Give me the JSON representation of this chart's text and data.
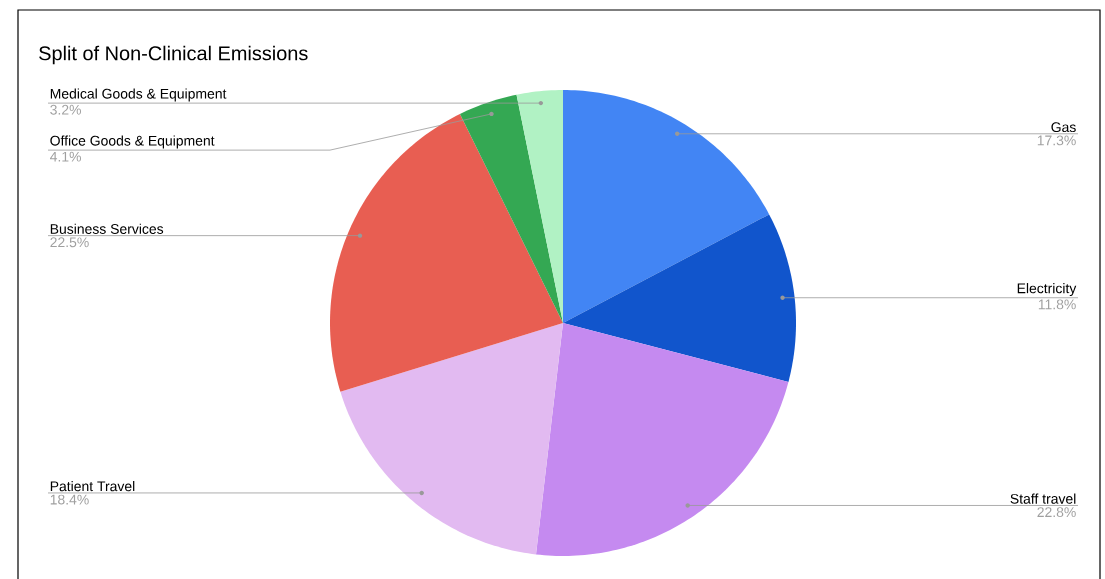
{
  "chart_data": {
    "type": "pie",
    "title": "Split of Non-Clinical Emissions",
    "categories": [
      "Gas",
      "Electricity",
      "Staff travel",
      "Patient Travel",
      "Business Services",
      "Office Goods & Equipment",
      "Medical Goods & Equipment"
    ],
    "values": [
      17.3,
      11.8,
      22.8,
      18.4,
      22.5,
      4.1,
      3.2
    ],
    "value_labels": [
      "17.3%",
      "11.8%",
      "22.8%",
      "18.4%",
      "22.5%",
      "4.1%",
      "3.2%"
    ],
    "colors": [
      "#4285f4",
      "#1155cc",
      "#c58af0",
      "#e2baf1",
      "#e85e52",
      "#34a853",
      "#b1f2c4"
    ]
  }
}
